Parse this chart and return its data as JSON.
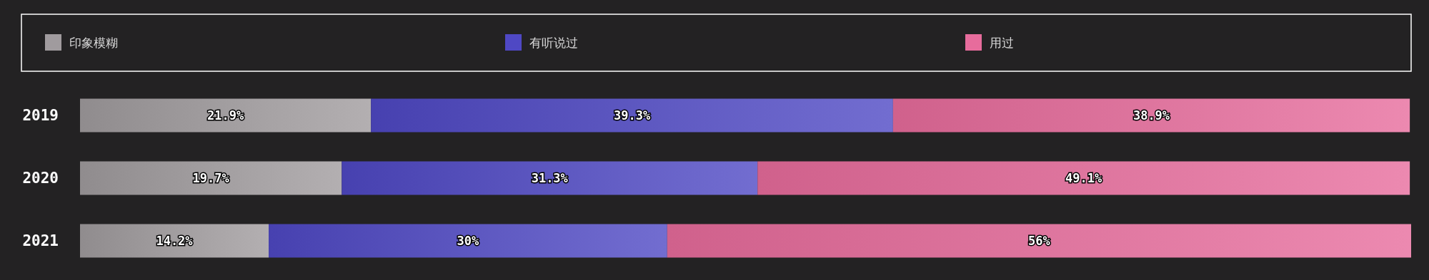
{
  "chart_data": {
    "type": "bar",
    "orientation": "horizontal",
    "stacked": true,
    "categories": [
      "2019",
      "2020",
      "2021"
    ],
    "series": [
      {
        "name": "印象模糊",
        "color": "#a09b9e",
        "values": [
          21.9,
          19.7,
          14.2
        ],
        "value_labels": [
          "21.9%",
          "19.7%",
          "14.2%"
        ]
      },
      {
        "name": "有听说过",
        "color": "#4f48c4",
        "values": [
          39.3,
          31.3,
          30
        ],
        "value_labels": [
          "39.3%",
          "31.3%",
          "30%"
        ]
      },
      {
        "name": "用过",
        "color": "#e76c9c",
        "values": [
          38.9,
          49.1,
          56
        ],
        "value_labels": [
          "38.9%",
          "49.1%",
          "56%"
        ]
      }
    ],
    "legend": "top"
  }
}
